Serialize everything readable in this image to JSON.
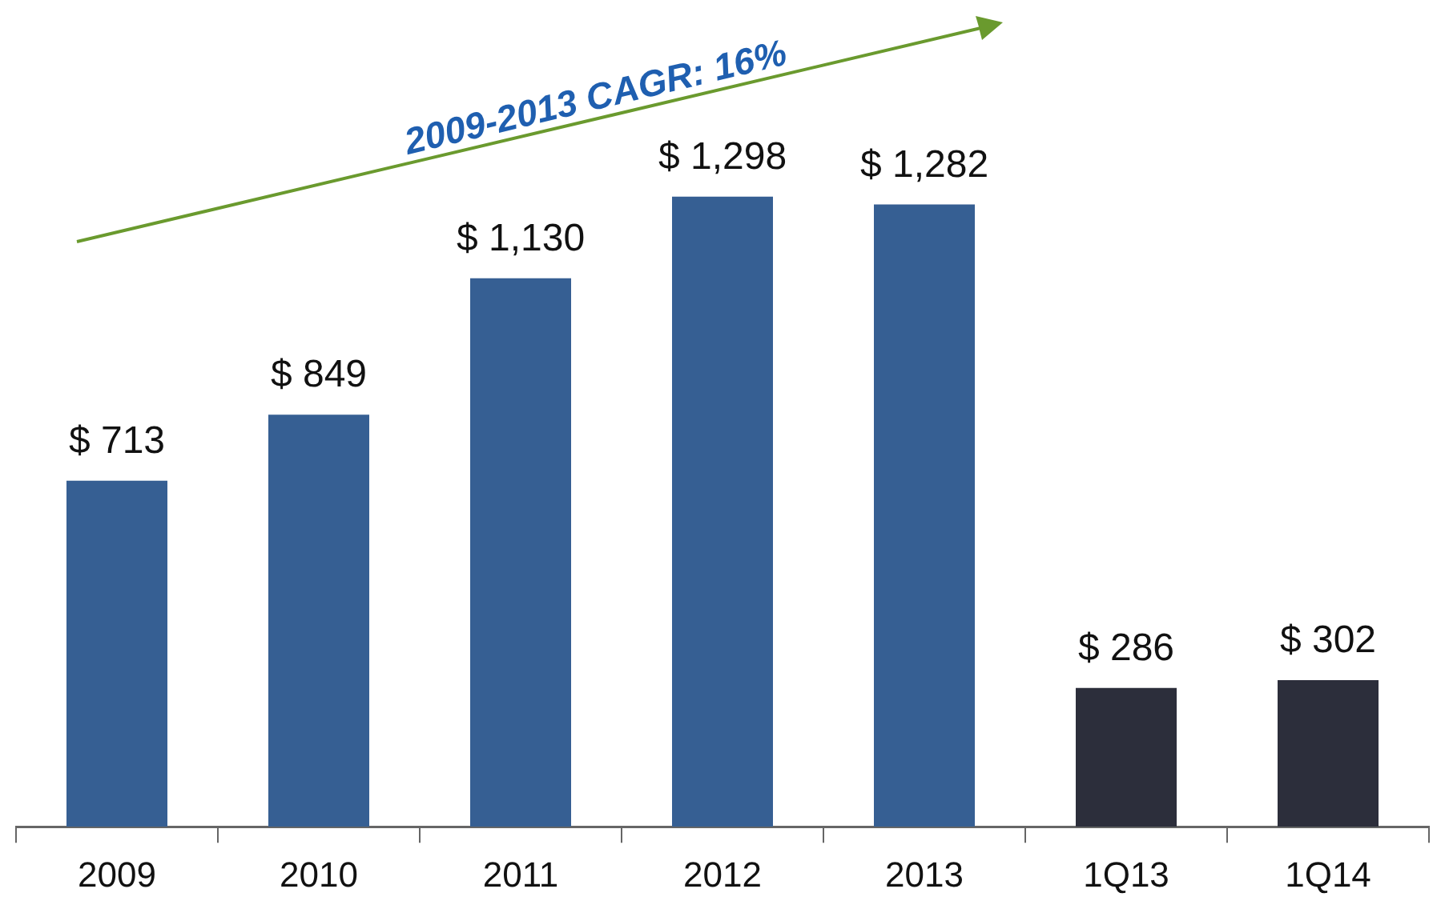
{
  "chart_data": {
    "type": "bar",
    "categories": [
      "2009",
      "2010",
      "2011",
      "2012",
      "2013",
      "1Q13",
      "1Q14"
    ],
    "values": [
      713,
      849,
      1130,
      1298,
      1282,
      286,
      302
    ],
    "colors": [
      "#365f93",
      "#365f93",
      "#365f93",
      "#365f93",
      "#365f93",
      "#2c2e3b",
      "#2c2e3b"
    ],
    "value_labels": [
      "$ 713",
      "$ 849",
      "$ 1,130",
      "$ 1,298",
      "$ 1,282",
      "$ 286",
      "$ 302"
    ],
    "annotations": [
      "2009-2013 CAGR: 16%"
    ],
    "legend": false
  }
}
